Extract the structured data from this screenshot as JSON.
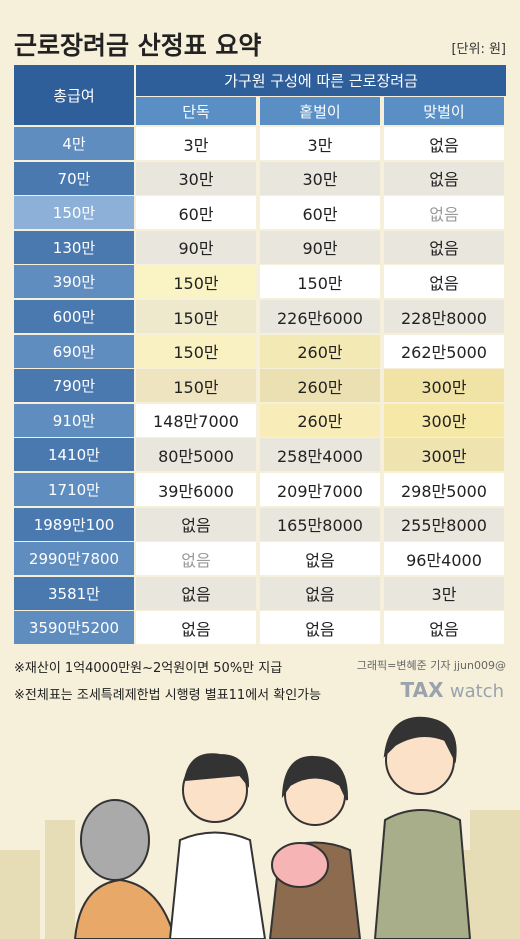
{
  "header": {
    "title": "근로장려금 산정표 요약",
    "unit": "[단위: 원]"
  },
  "table": {
    "head": {
      "first": "총급여",
      "group": "가구원 구성에 따른 근로장려금",
      "cols": [
        "단독",
        "홑벌이",
        "맞벌이"
      ]
    },
    "rows": [
      [
        "4만",
        "3만",
        "3만",
        "없음"
      ],
      [
        "70만",
        "30만",
        "30만",
        "없음"
      ],
      [
        "150만",
        "60만",
        "60만",
        "없음"
      ],
      [
        "130만",
        "90만",
        "90만",
        "없음"
      ],
      [
        "390만",
        "150만",
        "150만",
        "없음"
      ],
      [
        "600만",
        "150만",
        "226만6000",
        "228만8000"
      ],
      [
        "690만",
        "150만",
        "260만",
        "262만5000"
      ],
      [
        "790만",
        "150만",
        "260만",
        "300만"
      ],
      [
        "910만",
        "148만7000",
        "260만",
        "300만"
      ],
      [
        "1410만",
        "80만5000",
        "258만4000",
        "300만"
      ],
      [
        "1710만",
        "39만6000",
        "209만7000",
        "298만5000"
      ],
      [
        "1989만100",
        "없음",
        "165만8000",
        "255만8000"
      ],
      [
        "2990만7800",
        "없음",
        "없음",
        "96만4000"
      ],
      [
        "3581만",
        "없음",
        "없음",
        "3만"
      ],
      [
        "3590만5200",
        "없음",
        "없음",
        "없음"
      ]
    ]
  },
  "footnotes": [
    "※재산이 1억4000만원~2억원이면 50%만 지급",
    "※전체표는 조세특례제한법 시행령 별표11에서 확인가능"
  ],
  "credit": "그래픽=변혜준 기자 jjun009@",
  "logo": {
    "main": "TAX",
    "sub": "watch"
  }
}
